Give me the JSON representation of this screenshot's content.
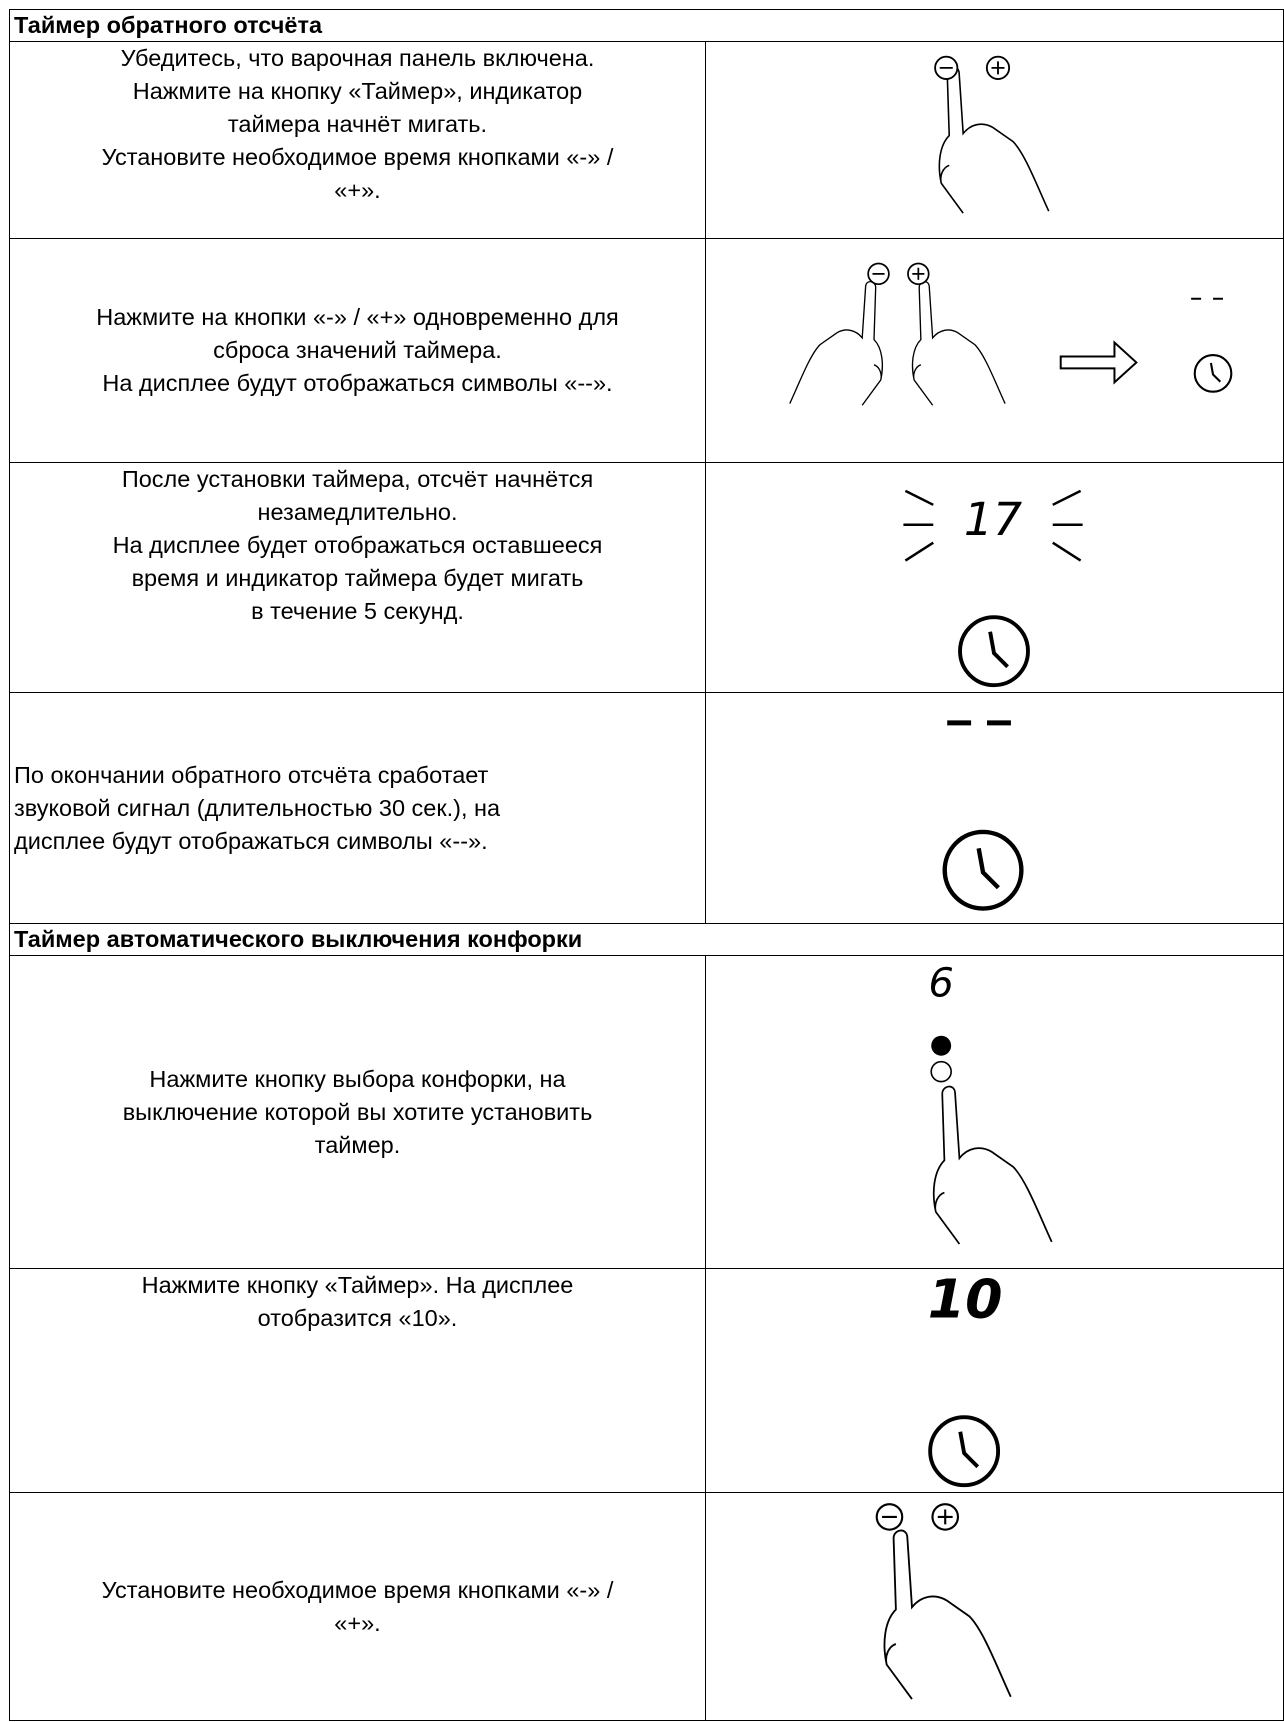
{
  "sections": [
    {
      "title": "Таймер обратного отсчёта",
      "rows": [
        {
          "text": [
            "Убедитесь, что варочная панель включена.",
            "Нажмите на кнопку «Таймер», индикатор",
            "таймера начнёт мигать.",
            "Установите необходимое время кнопками «-» /",
            "«+»."
          ]
        },
        {
          "text": [
            "Нажмите на кнопки «-» / «+» одновременно для",
            "сброса значений таймера.",
            "На дисплее будут отображаться символы «--»."
          ]
        },
        {
          "text": [
            "После установки таймера, отсчёт начнётся",
            "незамедлительно.",
            "На дисплее будет отображаться оставшееся",
            "время и индикатор таймера будет мигать",
            "в течение 5 секунд."
          ],
          "display": "17"
        },
        {
          "text": [
            "По окончании обратного отсчёта сработает",
            "звуковой сигнал (длительностью 30 сек.), на",
            "дисплее будут отображаться символы «--»."
          ]
        }
      ]
    },
    {
      "title": "Таймер автоматического выключения конфорки",
      "rows": [
        {
          "text": [
            "Нажмите кнопку выбора конфорки, на",
            "выключение которой вы хотите установить",
            "таймер."
          ],
          "display": "6"
        },
        {
          "text": [
            "Нажмите кнопку «Таймер». На дисплее",
            "отобразится «10»."
          ],
          "display": "10"
        },
        {
          "text": [
            "Установите необходимое время кнопками «-» /",
            "«+»."
          ]
        }
      ]
    }
  ]
}
